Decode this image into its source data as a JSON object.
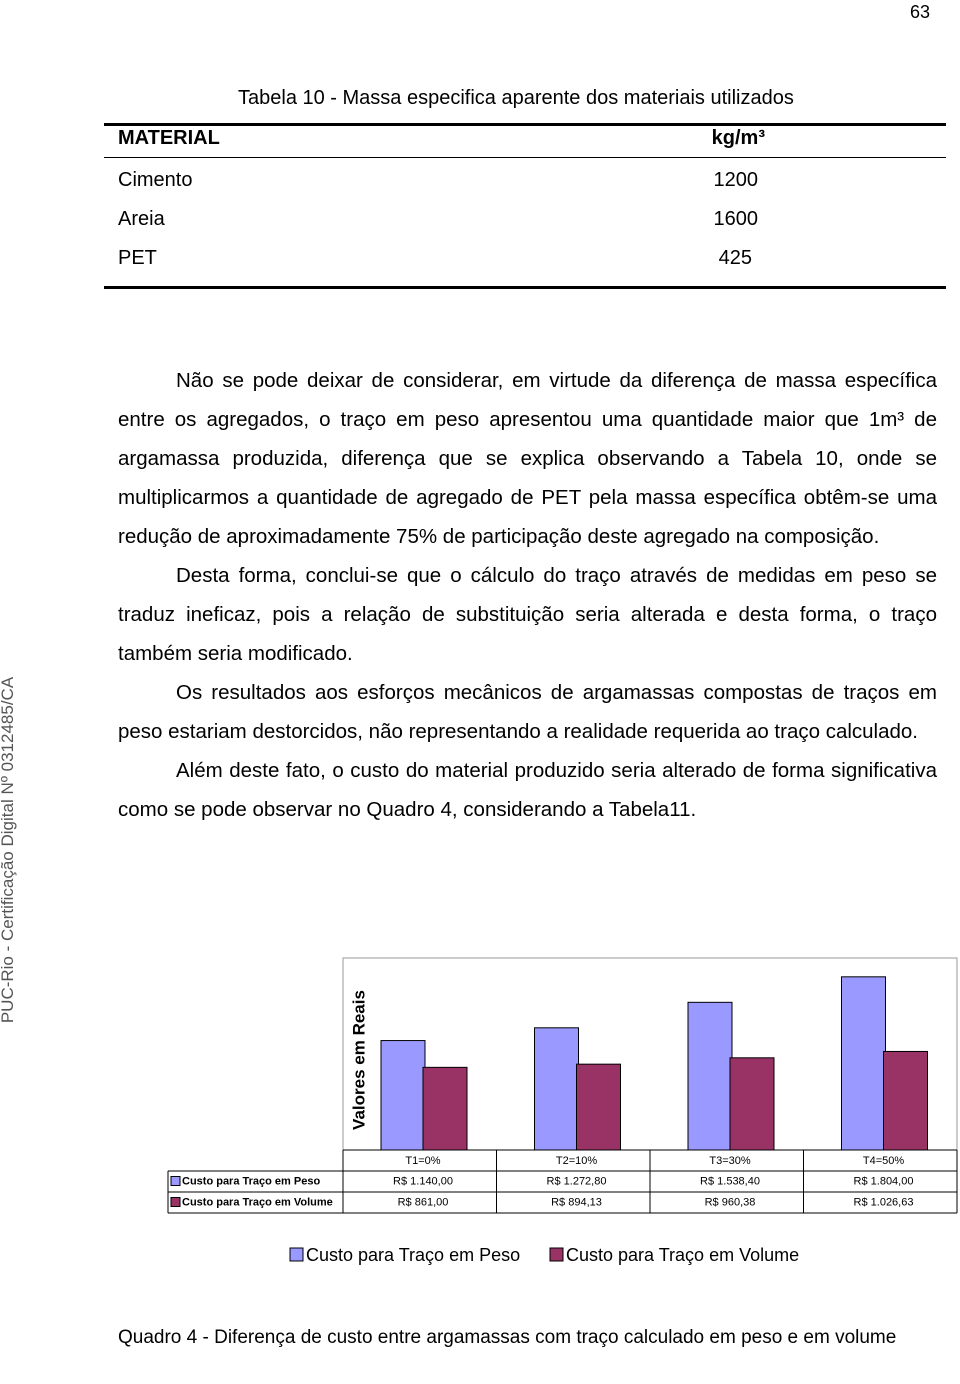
{
  "page_number": 63,
  "side_text": "PUC-Rio - Certificação Digital Nº 0312485/CA",
  "table": {
    "title": "Tabela 10 - Massa especifica aparente dos materiais utilizados",
    "header": [
      "MATERIAL",
      "kg/m³"
    ],
    "rows": [
      [
        "Cimento",
        1200
      ],
      [
        "Areia",
        1600
      ],
      [
        "PET",
        425
      ]
    ]
  },
  "paragraphs": [
    "Não se pode deixar de considerar, em virtude da diferença de massa específica entre os agregados, o traço em peso apresentou uma quantidade maior que 1m³ de argamassa produzida, diferença que se explica observando a Tabela 10, onde se multiplicarmos a quantidade de agregado de PET pela massa específica obtêm-se uma redução de aproximadamente 75% de participação deste agregado na composição.",
    "Desta forma, conclui-se que o cálculo do traço através de medidas em peso se traduz ineficaz, pois a relação de substituição seria alterada e desta forma, o traço também seria modificado.",
    "Os resultados aos esforços mecânicos de argamassas compostas de traços em peso estariam destorcidos, não representando a realidade requerida ao traço calculado.",
    "Além deste fato, o custo do material produzido seria alterado de forma significativa como se pode observar no Quadro 4, considerando a Tabela11."
  ],
  "chart_data": {
    "type": "bar",
    "y_label": "Valores em Reais",
    "categories": [
      "T1=0%",
      "T2=10%",
      "T3=30%",
      "T4=50%"
    ],
    "series": [
      {
        "name": "Custo para Traço em Peso",
        "color": "#9999ff",
        "values": [
          1140,
          1272.8,
          1538.4,
          1804
        ],
        "value_labels": [
          "R$ 1.140,00",
          "R$ 1.272,80",
          "R$ 1.538,40",
          "R$ 1.804,00"
        ]
      },
      {
        "name": "Custo para Traço em Volume",
        "color": "#993366",
        "values": [
          861,
          894.13,
          960.38,
          1026.63
        ],
        "value_labels": [
          "R$ 861,00",
          "R$ 894,13",
          "R$ 960,38",
          "R$ 1.026,63"
        ]
      }
    ],
    "ylim": [
      0,
      2000
    ]
  },
  "caption": "Quadro 4 - Diferença de custo entre argamassas com traço calculado em peso e em volume"
}
